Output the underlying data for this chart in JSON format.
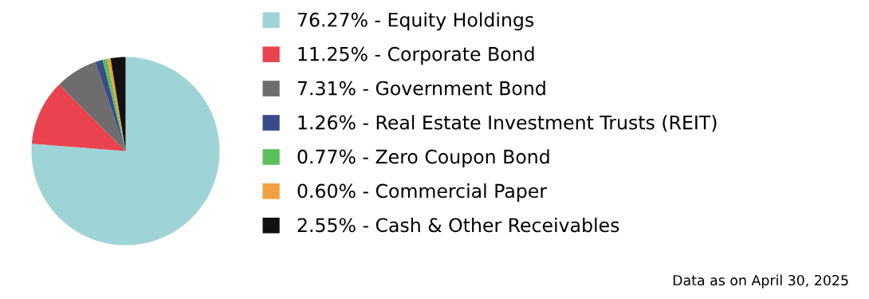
{
  "chart_data": {
    "type": "pie",
    "categories": [
      "76.27% - Equity Holdings",
      "11.25% - Corporate Bond",
      "7.31% - Government Bond",
      "1.26% - Real Estate Investment Trusts (REIT)",
      "0.77% - Zero Coupon Bond",
      "0.60% - Commercial Paper",
      "2.55% - Cash & Other Receivables"
    ],
    "values": [
      76.27,
      11.25,
      7.31,
      1.26,
      0.77,
      0.6,
      2.55
    ],
    "colors": [
      "#9fd4d6",
      "#e8434f",
      "#6d6d6d",
      "#3a4a8a",
      "#5cbf5a",
      "#f0a040",
      "#111111"
    ],
    "legend": "right",
    "annotations": [
      "Data as on April 30, 2025"
    ]
  }
}
